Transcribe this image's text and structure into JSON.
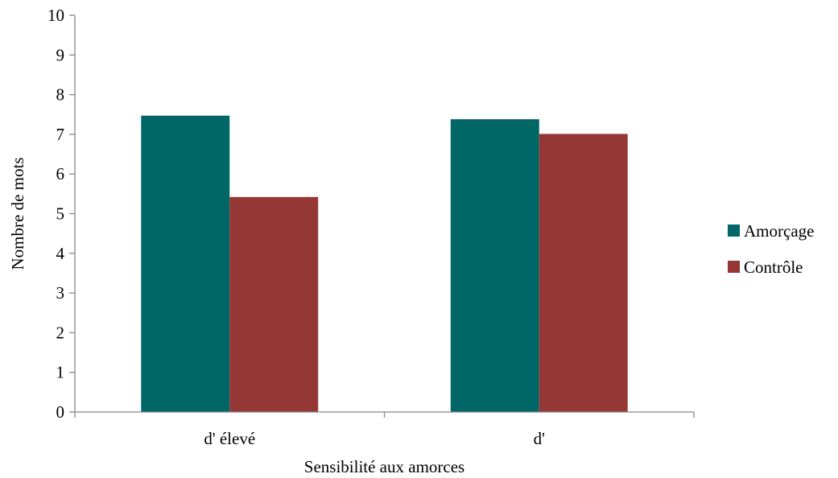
{
  "chart_data": {
    "type": "bar",
    "categories": [
      "d' élevé",
      "d'"
    ],
    "series": [
      {
        "name": "Amorçage",
        "color": "#006666",
        "values": [
          7.47,
          7.38
        ]
      },
      {
        "name": "Contrôle",
        "color": "#953735",
        "values": [
          5.42,
          7.01
        ]
      }
    ],
    "xlabel": "Sensibilité aux amorces",
    "ylabel": "Nombre de mots",
    "ylim": [
      0,
      10
    ],
    "yticks": [
      0,
      1,
      2,
      3,
      4,
      5,
      6,
      7,
      8,
      9,
      10
    ],
    "grid": false,
    "legend": "right"
  }
}
